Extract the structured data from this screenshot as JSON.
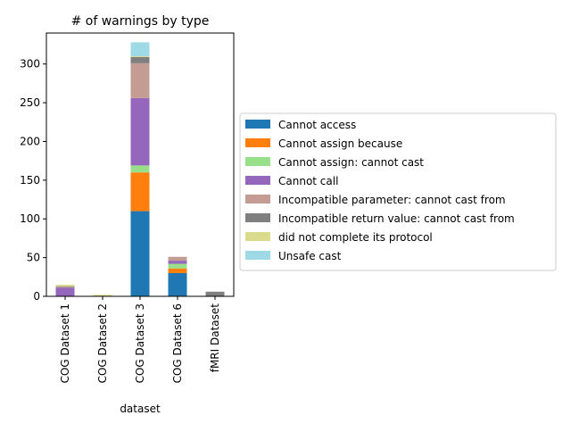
{
  "chart_data": {
    "type": "bar",
    "stacked": true,
    "title": "# of warnings by type",
    "xlabel": "dataset",
    "ylabel": "",
    "ylim": [
      0,
      340
    ],
    "yticks": [
      0,
      50,
      100,
      150,
      200,
      250,
      300
    ],
    "grid": false,
    "legend_position": "right",
    "categories": [
      "COG Dataset 1",
      "COG Dataset 2",
      "COG Dataset 3",
      "COG Dataset 6",
      "fMRI Dataset"
    ],
    "series": [
      {
        "name": "Cannot access",
        "color": "#1f77b4",
        "values": [
          0,
          0,
          110,
          30,
          0
        ]
      },
      {
        "name": "Cannot assign because",
        "color": "#ff7f0e",
        "values": [
          0,
          0,
          50,
          6,
          0
        ]
      },
      {
        "name": "Cannot assign: cannot cast",
        "color": "#98df8a",
        "values": [
          0,
          0,
          9,
          6,
          0
        ]
      },
      {
        "name": "Cannot call",
        "color": "#9467bd",
        "values": [
          11,
          0,
          87,
          4,
          0
        ]
      },
      {
        "name": "Incompatible parameter: cannot cast from",
        "color": "#c49c94",
        "values": [
          1,
          0,
          45,
          5,
          0
        ]
      },
      {
        "name": "Incompatible return value: cannot cast from",
        "color": "#7f7f7f",
        "values": [
          1,
          0,
          8,
          0,
          6
        ]
      },
      {
        "name": "did not complete its protocol",
        "color": "#dbdb8d",
        "values": [
          2,
          2,
          1,
          0,
          0
        ]
      },
      {
        "name": "Unsafe cast",
        "color": "#9edae5",
        "values": [
          0,
          0,
          18,
          0,
          0
        ]
      }
    ]
  }
}
